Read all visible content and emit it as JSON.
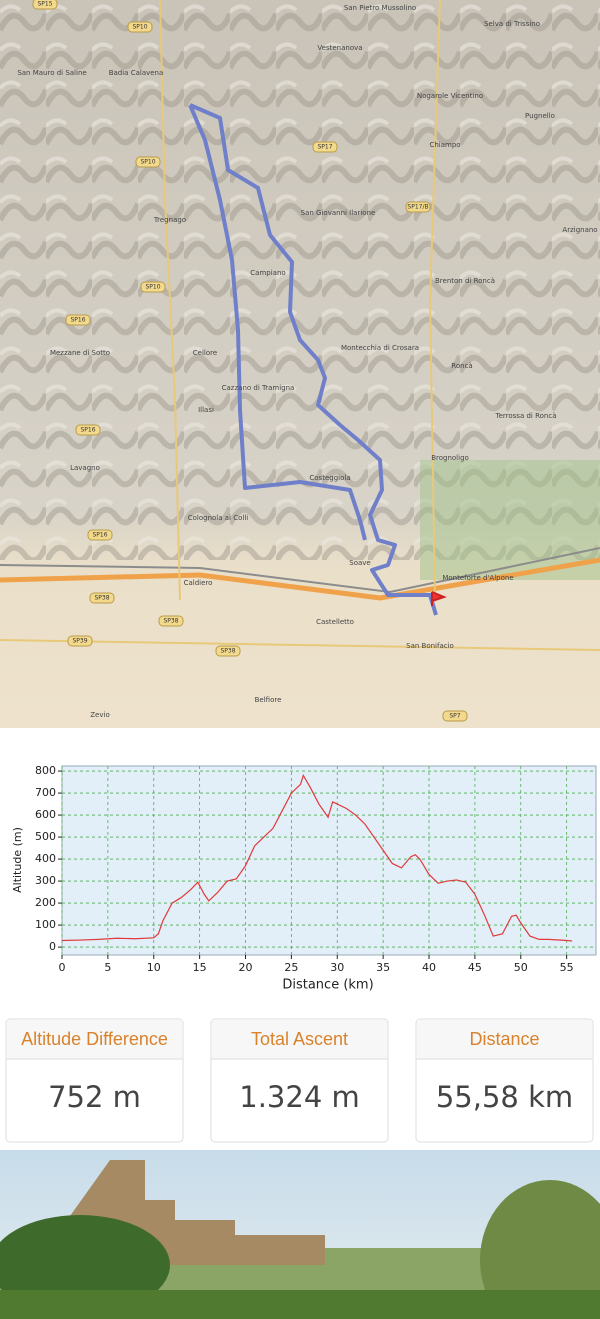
{
  "map": {
    "labels": [
      "San Pietro Mussolino",
      "Selva di Trissino",
      "San Mauro di Saline",
      "Badia Calavena",
      "Vestenanova",
      "Nogarole Vicentino",
      "Pugnello",
      "Chiampo",
      "San Giovanni Ilarione",
      "Arzignano",
      "Tregnago",
      "Campiano",
      "Brenton di Roncà",
      "Mezzane di Sotto",
      "Cellore",
      "Montecchia di Crosara",
      "Roncà",
      "Cazzano di Tramigna",
      "Illasi",
      "Terrossa di Roncà",
      "Brognoligo",
      "Lavagno",
      "Costeggiola",
      "Colognola ai Colli",
      "Monteforte d'Alpone",
      "Caldiero",
      "Castelletto",
      "San Bonifacio",
      "Belfiore",
      "Zevio",
      "Soave"
    ],
    "roads": [
      "SP15",
      "SP10",
      "SP10",
      "SP17",
      "SP17/B",
      "SP10",
      "SP16",
      "SP16",
      "SP16",
      "SP38",
      "SP38",
      "SP39",
      "SP38",
      "SP7"
    ]
  },
  "chart_data": {
    "type": "line",
    "x_label": "Distance (km)",
    "y_label": "Altitude (m)",
    "x": [
      0,
      2,
      4,
      6,
      8,
      10,
      10.5,
      11,
      12,
      13,
      14,
      14.8,
      15.5,
      16,
      17,
      18,
      19,
      20,
      21,
      22,
      23,
      24,
      25,
      26,
      26.3,
      27,
      28,
      29,
      29.5,
      30,
      31,
      32,
      33,
      34,
      35,
      36,
      37,
      38,
      38.5,
      39,
      40,
      41,
      42,
      43,
      44,
      45,
      46,
      47,
      48,
      49,
      49.5,
      50,
      51,
      52,
      53,
      55,
      55.6
    ],
    "series": [
      {
        "name": "Altitude",
        "color": "#e03a3a",
        "values": [
          30,
          32,
          35,
          40,
          38,
          42,
          60,
          120,
          200,
          225,
          260,
          295,
          240,
          210,
          250,
          300,
          310,
          370,
          460,
          500,
          540,
          620,
          700,
          740,
          780,
          730,
          650,
          590,
          660,
          650,
          630,
          600,
          560,
          500,
          440,
          380,
          360,
          410,
          420,
          400,
          330,
          290,
          300,
          305,
          295,
          240,
          150,
          50,
          60,
          140,
          145,
          110,
          50,
          35,
          35,
          30,
          28
        ]
      }
    ],
    "xlim": [
      0,
      58.2
    ],
    "ylim": [
      -36,
      823
    ],
    "xticks": [
      0,
      5,
      10,
      15,
      20,
      25,
      30,
      35,
      40,
      45,
      50,
      55
    ],
    "yticks": [
      0,
      100,
      200,
      300,
      400,
      500,
      600,
      700,
      800
    ],
    "grid": true
  },
  "stats": [
    {
      "title": "Altitude Difference",
      "value": "752 m"
    },
    {
      "title": "Total Ascent",
      "value": "1.324 m"
    },
    {
      "title": "Distance",
      "value": "55,58 km"
    }
  ]
}
